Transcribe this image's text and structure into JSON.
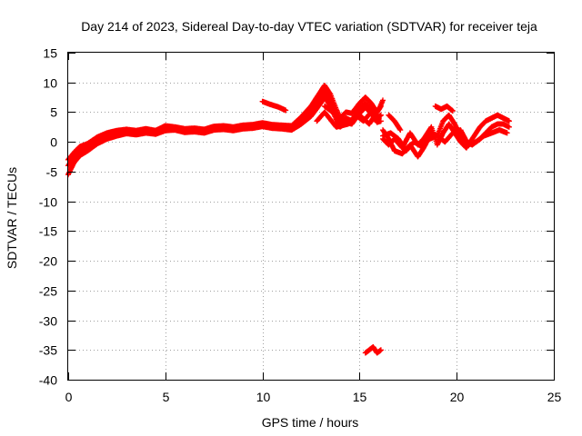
{
  "chart_data": {
    "type": "scatter",
    "title": "Day 214 of 2023, Sidereal Day-to-day VTEC variation (SDTVAR) for receiver teja",
    "xlabel": "GPS time / hours",
    "ylabel": "SDTVAR / TECUs",
    "xlim": [
      0,
      25
    ],
    "ylim": [
      -40,
      15
    ],
    "xticks": [
      0,
      5,
      10,
      15,
      20,
      25
    ],
    "yticks": [
      15,
      10,
      5,
      0,
      -5,
      -10,
      -15,
      -20,
      -25,
      -30,
      -35,
      -40
    ],
    "grid": true,
    "marker": "plus",
    "series": [
      {
        "name": "SDTVAR",
        "color": "#ff0000",
        "tracks": [
          {
            "x": [
              0.0,
              0.3,
              0.6,
              1.0,
              1.5,
              2.0,
              2.5,
              3.0,
              3.5,
              4.0,
              4.5,
              5.0,
              5.5,
              6.0,
              6.5,
              7.0,
              7.5,
              8.0,
              8.5,
              9.0,
              9.5,
              10.0,
              10.5,
              11.0,
              11.5,
              12.0,
              12.5,
              13.0,
              13.2,
              13.5,
              13.8,
              14.0,
              14.3,
              14.6,
              15.0,
              15.3,
              15.6,
              15.9,
              16.1
            ],
            "y": [
              -4.0,
              -2.5,
              -1.5,
              -1.0,
              0.0,
              0.8,
              1.3,
              1.7,
              1.5,
              1.8,
              1.6,
              2.2,
              2.3,
              1.9,
              2.0,
              1.8,
              2.3,
              2.4,
              2.2,
              2.5,
              2.6,
              2.9,
              2.6,
              2.5,
              2.3,
              3.5,
              5.0,
              7.5,
              8.5,
              7.0,
              4.5,
              3.0,
              4.0,
              3.5,
              5.5,
              6.5,
              5.5,
              4.0,
              4.5
            ]
          },
          {
            "x": [
              0.0,
              0.3,
              0.6,
              1.0,
              1.5,
              2.0,
              2.5,
              3.0,
              3.5,
              4.0,
              4.5,
              5.0,
              5.5,
              6.0,
              6.5,
              7.0,
              7.5,
              8.0,
              8.5,
              9.0,
              9.5,
              10.0,
              10.5,
              11.0,
              11.5,
              12.0,
              12.5,
              13.0,
              13.2,
              13.5,
              13.8,
              14.0,
              14.3,
              14.6,
              15.0,
              15.3,
              15.6,
              15.9,
              16.1
            ],
            "y": [
              -3.0,
              -1.8,
              -0.8,
              -0.3,
              0.8,
              1.5,
              1.9,
              2.1,
              1.9,
              2.2,
              1.9,
              2.7,
              2.5,
              2.2,
              2.3,
              2.1,
              2.6,
              2.7,
              2.5,
              2.8,
              2.9,
              3.2,
              2.9,
              2.8,
              2.7,
              4.2,
              6.0,
              8.5,
              9.5,
              8.0,
              5.5,
              4.0,
              5.0,
              4.8,
              6.5,
              7.5,
              6.5,
              5.0,
              6.0
            ]
          },
          {
            "x": [
              0.0,
              0.3,
              0.6,
              1.0,
              1.5,
              2.0,
              2.5,
              3.0,
              3.5,
              4.0,
              4.5,
              5.0,
              5.5,
              6.0,
              6.5,
              7.0,
              7.5,
              8.0,
              8.5,
              9.0,
              9.5,
              10.0,
              10.5,
              11.0,
              11.5,
              12.0,
              12.5,
              13.0,
              13.2,
              13.5,
              13.8,
              14.0,
              14.3,
              14.6,
              15.0,
              15.3,
              15.6,
              15.9,
              16.1
            ],
            "y": [
              -5.5,
              -3.5,
              -2.3,
              -1.5,
              -0.3,
              0.5,
              1.0,
              1.4,
              1.2,
              1.5,
              1.3,
              1.9,
              2.0,
              1.6,
              1.7,
              1.5,
              2.0,
              2.1,
              1.9,
              2.2,
              2.3,
              2.6,
              2.3,
              2.2,
              2.0,
              3.0,
              4.3,
              6.5,
              7.5,
              6.0,
              3.8,
              2.5,
              3.3,
              3.0,
              4.8,
              5.8,
              4.8,
              3.3,
              3.5
            ]
          },
          {
            "x": [
              13.2,
              13.6,
              14.0,
              14.4,
              14.8,
              15.2,
              15.6,
              16.0
            ],
            "y": [
              6.0,
              5.0,
              4.0,
              3.0,
              4.5,
              3.5,
              5.0,
              4.0
            ]
          },
          {
            "x": [
              12.8,
              13.2,
              13.8,
              14.4,
              15.0,
              15.5,
              16.0,
              16.2
            ],
            "y": [
              3.5,
              5.0,
              2.5,
              3.0,
              4.5,
              3.0,
              5.5,
              7.0
            ]
          },
          {
            "x": [
              16.2,
              16.5,
              16.8,
              17.2,
              17.6,
              18.0,
              18.3,
              18.7,
              19.0,
              19.3,
              19.6,
              19.9,
              20.2,
              20.5,
              20.8,
              21.2,
              21.5,
              21.8,
              22.1,
              22.4,
              22.7
            ],
            "y": [
              2.0,
              0.5,
              -1.5,
              -2.0,
              -0.5,
              -2.5,
              -1.0,
              1.5,
              1.0,
              3.5,
              4.5,
              3.0,
              1.0,
              0.0,
              -0.5,
              0.5,
              1.5,
              2.5,
              3.0,
              3.0,
              2.5
            ]
          },
          {
            "x": [
              16.2,
              16.5,
              16.8,
              17.2,
              17.6,
              18.0,
              18.3,
              18.7,
              19.0,
              19.3,
              19.6,
              19.9,
              20.2,
              20.5,
              20.8,
              21.2,
              21.5,
              21.8,
              22.1,
              22.4,
              22.7
            ],
            "y": [
              0.5,
              -0.5,
              0.5,
              -1.0,
              1.5,
              -0.5,
              0.5,
              2.5,
              -0.5,
              1.5,
              3.0,
              1.5,
              0.0,
              -1.0,
              0.5,
              2.5,
              3.5,
              4.0,
              4.5,
              4.0,
              3.5
            ]
          },
          {
            "x": [
              16.2,
              16.6,
              17.0,
              17.4,
              17.8,
              18.2,
              18.6,
              19.0,
              19.4,
              19.8,
              20.2,
              20.6,
              21.0,
              21.4,
              21.8,
              22.2,
              22.6
            ],
            "y": [
              1.0,
              1.5,
              0.5,
              -1.5,
              0.0,
              -0.8,
              0.5,
              1.0,
              0.0,
              1.5,
              2.0,
              -0.5,
              0.0,
              1.0,
              1.5,
              2.0,
              1.5
            ]
          },
          {
            "x": [
              16.5,
              16.8,
              17.1
            ],
            "y": [
              4.5,
              3.5,
              2.0
            ]
          },
          {
            "x": [
              18.9,
              19.2,
              19.5,
              19.8
            ],
            "y": [
              6.0,
              5.5,
              6.0,
              5.2
            ]
          },
          {
            "x": [
              10.0,
              10.4,
              10.8,
              11.2
            ],
            "y": [
              6.8,
              6.3,
              5.9,
              5.3
            ]
          },
          {
            "x": [
              15.3,
              15.5,
              15.7,
              15.9,
              16.1
            ],
            "y": [
              -35.5,
              -35.0,
              -34.5,
              -35.5,
              -35.0
            ]
          }
        ]
      }
    ]
  }
}
